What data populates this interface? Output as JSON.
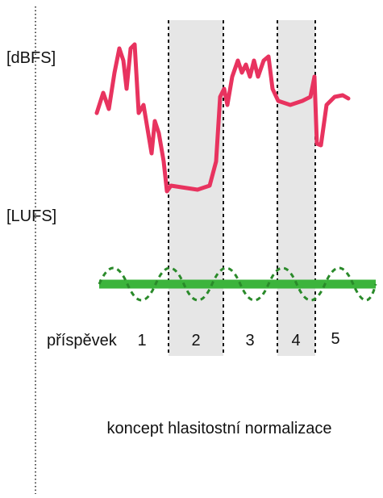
{
  "labels": {
    "top": "[dBFS]",
    "bottom": "[LUFS]"
  },
  "segments": {
    "label": "příspěvek",
    "numbers": [
      "1",
      "2",
      "3",
      "4",
      "5"
    ]
  },
  "caption": "koncept hlasitostní normalizace"
}
